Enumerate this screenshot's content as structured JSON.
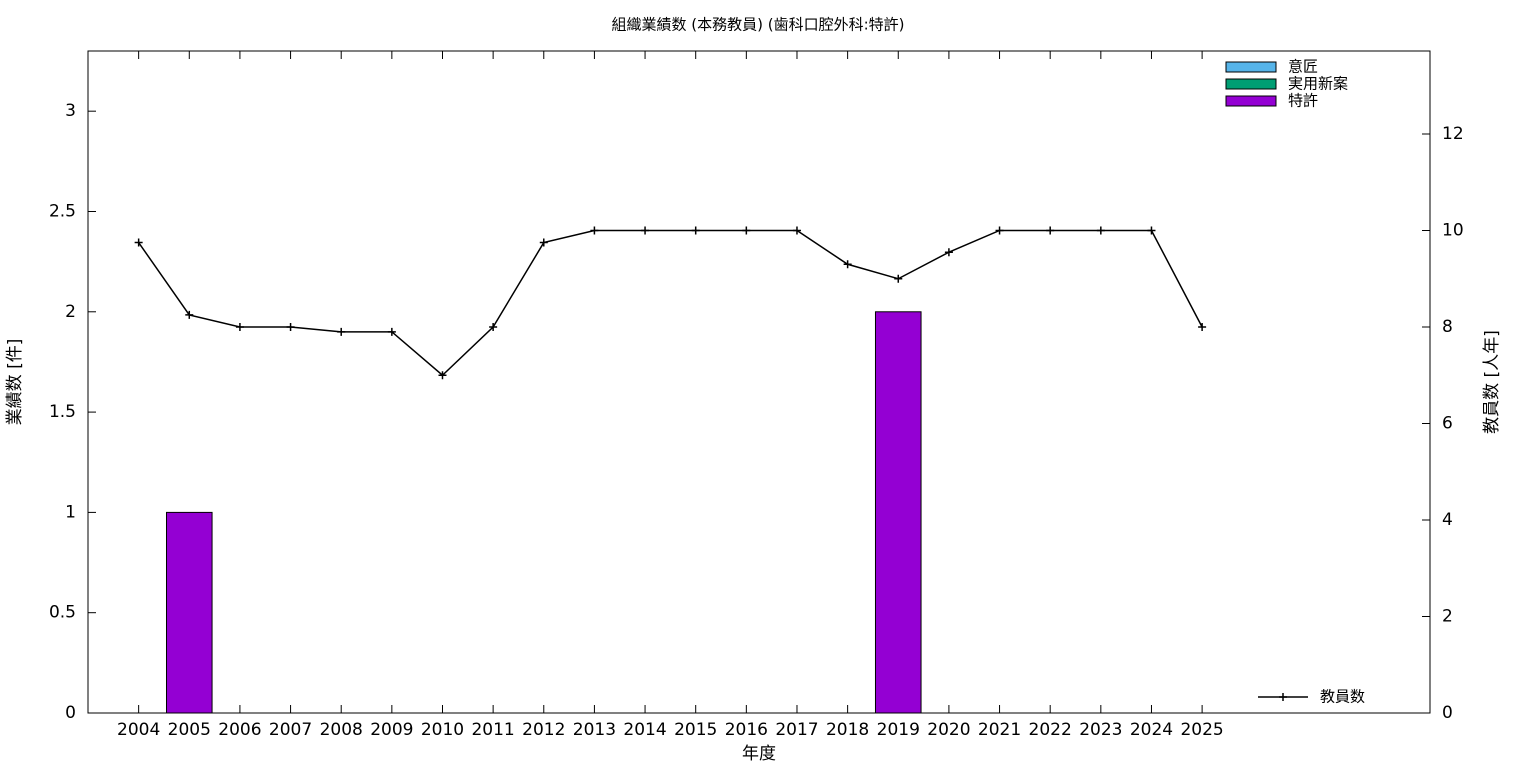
{
  "chart_data": {
    "type": "bar",
    "title": "組織業績数 (本務教員) (歯科口腔外科:特許)",
    "xlabel": "年度",
    "ylabel": "業績数 [件]",
    "y2label": "教員数 [人年]",
    "x": [
      2004,
      2005,
      2006,
      2007,
      2008,
      2009,
      2010,
      2011,
      2012,
      2013,
      2014,
      2015,
      2016,
      2017,
      2018,
      2019,
      2020,
      2021,
      2022,
      2023,
      2024,
      2025
    ],
    "xlim": [
      2003,
      2029.5
    ],
    "xticks": [
      2004,
      2005,
      2006,
      2007,
      2008,
      2009,
      2010,
      2011,
      2012,
      2013,
      2014,
      2015,
      2016,
      2017,
      2018,
      2019,
      2020,
      2021,
      2022,
      2023,
      2024,
      2025
    ],
    "ylim": [
      0,
      3.3
    ],
    "yticks": [
      0,
      0.5,
      1,
      1.5,
      2,
      2.5,
      3
    ],
    "y2lim": [
      0,
      13.72
    ],
    "y2ticks": [
      0,
      2,
      4,
      6,
      8,
      10,
      12
    ],
    "series": [
      {
        "name": "意匠",
        "color": "#56b4e9",
        "values": [
          0,
          0,
          0,
          0,
          0,
          0,
          0,
          0,
          0,
          0,
          0,
          0,
          0,
          0,
          0,
          0,
          0,
          0,
          0,
          0,
          0,
          0
        ]
      },
      {
        "name": "実用新案",
        "color": "#009e73",
        "values": [
          0,
          0,
          0,
          0,
          0,
          0,
          0,
          0,
          0,
          0,
          0,
          0,
          0,
          0,
          0,
          0,
          0,
          0,
          0,
          0,
          0,
          0
        ]
      },
      {
        "name": "特許",
        "color": "#9400d3",
        "values": [
          0,
          1,
          0,
          0,
          0,
          0,
          0,
          0,
          0,
          0,
          0,
          0,
          0,
          0,
          0,
          2,
          0,
          0,
          0,
          0,
          0,
          0
        ]
      },
      {
        "name": "教員数",
        "color": "#000000",
        "type": "line",
        "axis": "y2",
        "values": [
          9.75,
          8.25,
          8,
          8,
          7.9,
          7.9,
          7,
          8,
          9.75,
          10,
          10,
          10,
          10,
          10,
          9.3,
          9,
          9.55,
          10,
          10,
          10,
          10,
          8
        ]
      }
    ]
  }
}
